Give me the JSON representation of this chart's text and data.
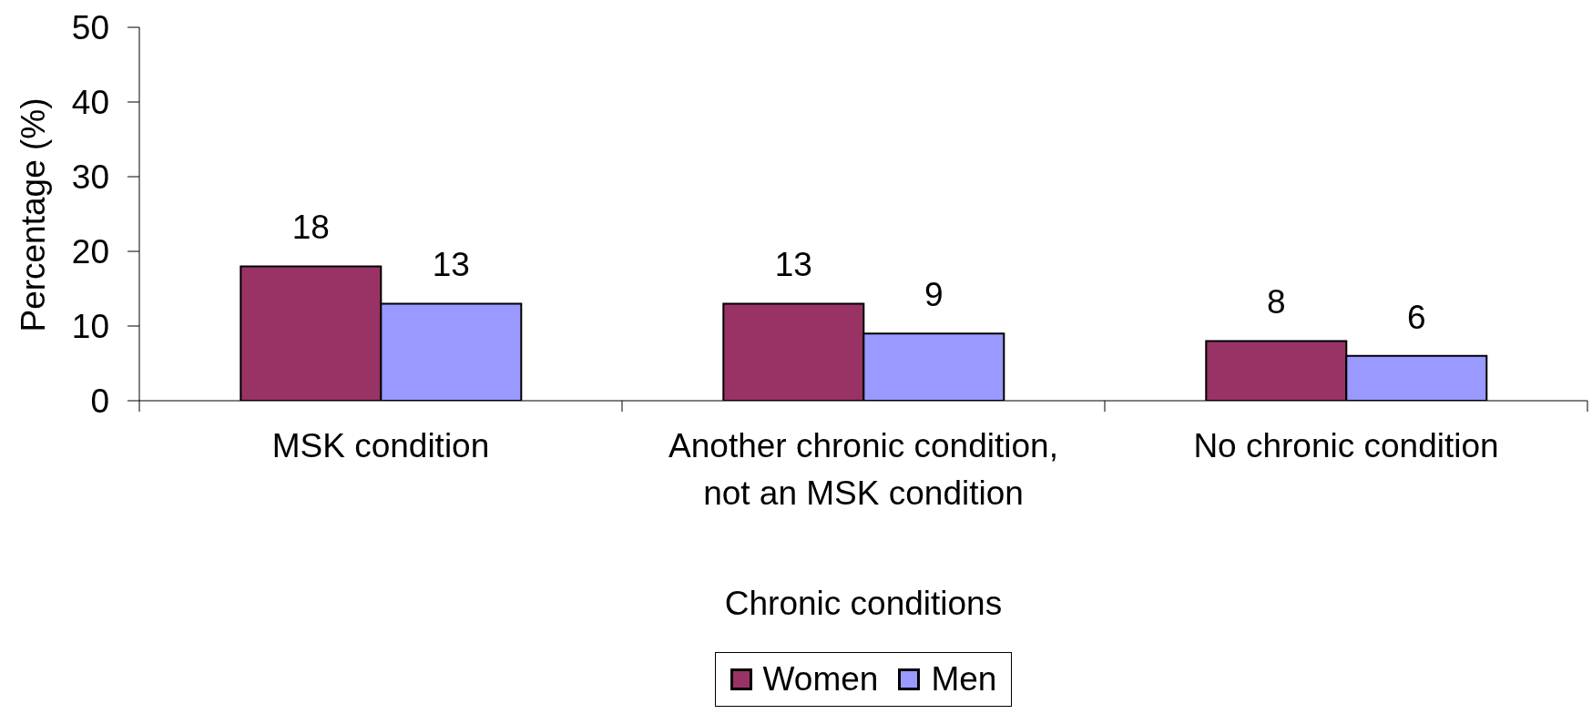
{
  "chart_data": {
    "type": "bar",
    "xlabel": "Chronic conditions",
    "ylabel": "Percentage (%)",
    "categories": [
      "MSK condition",
      "Another chronic condition, not an MSK condition",
      "No chronic condition"
    ],
    "series": [
      {
        "name": "Women",
        "color": "#993366",
        "values": [
          18,
          13,
          8
        ]
      },
      {
        "name": "Men",
        "color": "#9999ff",
        "values": [
          13,
          9,
          6
        ]
      }
    ],
    "ylim": [
      0,
      50
    ],
    "yticks": [
      0,
      10,
      20,
      30,
      40,
      50
    ],
    "data_labels": true,
    "legend": "bottom"
  }
}
